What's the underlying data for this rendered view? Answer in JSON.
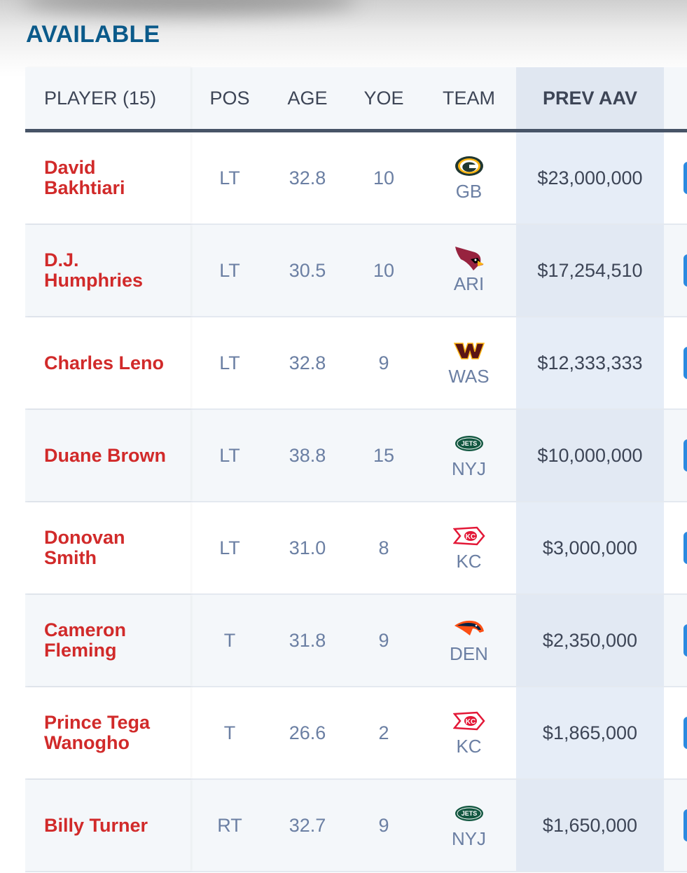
{
  "section_title": "AVAILABLE",
  "columns": {
    "player": "PLAYER (15)",
    "pos": "POS",
    "age": "AGE",
    "yoe": "YOE",
    "team": "TEAM",
    "prev_aav": "PREV AAV"
  },
  "colors": {
    "accent": "#0b5a8a",
    "player_name": "#d12a2a",
    "aav_column": "#e6edf7"
  },
  "rows": [
    {
      "first": "David",
      "last": "Bakhtiari",
      "pos": "LT",
      "age": "32.8",
      "yoe": "10",
      "team": "GB",
      "logo": "packers-logo",
      "aav": "$23,000,000"
    },
    {
      "first": "D.J.",
      "last": "Humphries",
      "pos": "LT",
      "age": "30.5",
      "yoe": "10",
      "team": "ARI",
      "logo": "cardinals-logo",
      "aav": "$17,254,510"
    },
    {
      "first": "Charles Leno",
      "last": "",
      "pos": "LT",
      "age": "32.8",
      "yoe": "9",
      "team": "WAS",
      "logo": "commanders-logo",
      "aav": "$12,333,333"
    },
    {
      "first": "Duane Brown",
      "last": "",
      "pos": "LT",
      "age": "38.8",
      "yoe": "15",
      "team": "NYJ",
      "logo": "jets-logo",
      "aav": "$10,000,000"
    },
    {
      "first": "Donovan",
      "last": "Smith",
      "pos": "LT",
      "age": "31.0",
      "yoe": "8",
      "team": "KC",
      "logo": "chiefs-logo",
      "aav": "$3,000,000"
    },
    {
      "first": "Cameron",
      "last": "Fleming",
      "pos": "T",
      "age": "31.8",
      "yoe": "9",
      "team": "DEN",
      "logo": "broncos-logo",
      "aav": "$2,350,000"
    },
    {
      "first": "Prince Tega",
      "last": "Wanogho",
      "pos": "T",
      "age": "26.6",
      "yoe": "2",
      "team": "KC",
      "logo": "chiefs-logo",
      "aav": "$1,865,000"
    },
    {
      "first": "Billy Turner",
      "last": "",
      "pos": "RT",
      "age": "32.7",
      "yoe": "9",
      "team": "NYJ",
      "logo": "jets-logo",
      "aav": "$1,650,000"
    }
  ]
}
